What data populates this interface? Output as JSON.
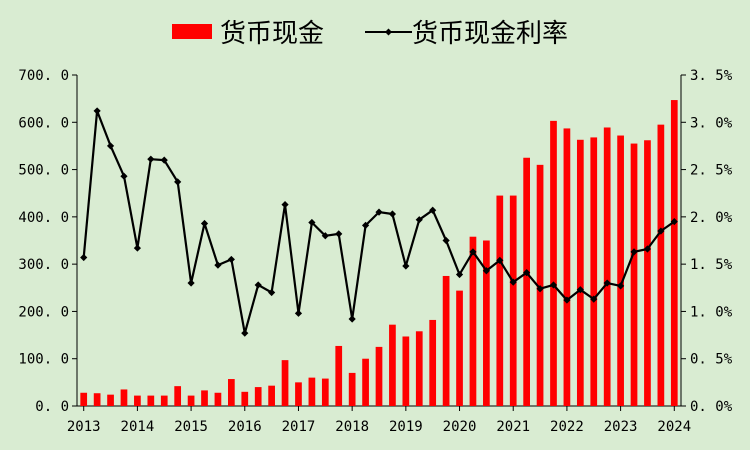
{
  "chart_data": {
    "type": "bar+line",
    "legend": {
      "position": "top",
      "bar_label": "货币现金",
      "line_label": "货币现金利率"
    },
    "colors": {
      "bar": "#ff0000",
      "line": "#000000",
      "background": "#d9ecd2"
    },
    "x_tick_labels": [
      "2013",
      "2014",
      "2015",
      "2016",
      "2017",
      "2018",
      "2019",
      "2020",
      "2021",
      "2022",
      "2023",
      "2024"
    ],
    "y_left": {
      "min": 0,
      "max": 700,
      "step": 100,
      "tick_labels": [
        "0. 0",
        "100. 0",
        "200. 0",
        "300. 0",
        "400. 0",
        "500. 0",
        "600. 0",
        "700. 0"
      ]
    },
    "y_right": {
      "min": 0,
      "max": 3.5,
      "step": 0.5,
      "tick_labels": [
        "0. 0%",
        "0. 5%",
        "1. 0%",
        "1. 5%",
        "2. 0%",
        "2. 5%",
        "3. 0%",
        "3. 5%"
      ]
    },
    "grid": false,
    "series": [
      {
        "name": "货币现金",
        "type": "bar",
        "axis": "left",
        "values": [
          28,
          27,
          24,
          35,
          22,
          22,
          22,
          42,
          22,
          33,
          28,
          57,
          30,
          40,
          43,
          97,
          50,
          60,
          58,
          127,
          70,
          100,
          125,
          172,
          147,
          158,
          182,
          275,
          244,
          358,
          350,
          445,
          445,
          525,
          510,
          603,
          587,
          563,
          568,
          589,
          572,
          555,
          562,
          595,
          647
        ]
      },
      {
        "name": "货币现金利率",
        "type": "line",
        "axis": "right",
        "values": [
          1.57,
          3.12,
          2.75,
          2.43,
          1.67,
          2.61,
          2.6,
          2.37,
          1.3,
          1.93,
          1.49,
          1.55,
          0.77,
          1.28,
          1.2,
          2.13,
          0.98,
          1.94,
          1.8,
          1.82,
          0.92,
          1.91,
          2.05,
          2.03,
          1.48,
          1.97,
          2.07,
          1.75,
          1.39,
          1.63,
          1.43,
          1.54,
          1.31,
          1.41,
          1.24,
          1.28,
          1.12,
          1.23,
          1.13,
          1.3,
          1.27,
          1.63,
          1.66,
          1.85,
          1.95
        ]
      }
    ]
  }
}
